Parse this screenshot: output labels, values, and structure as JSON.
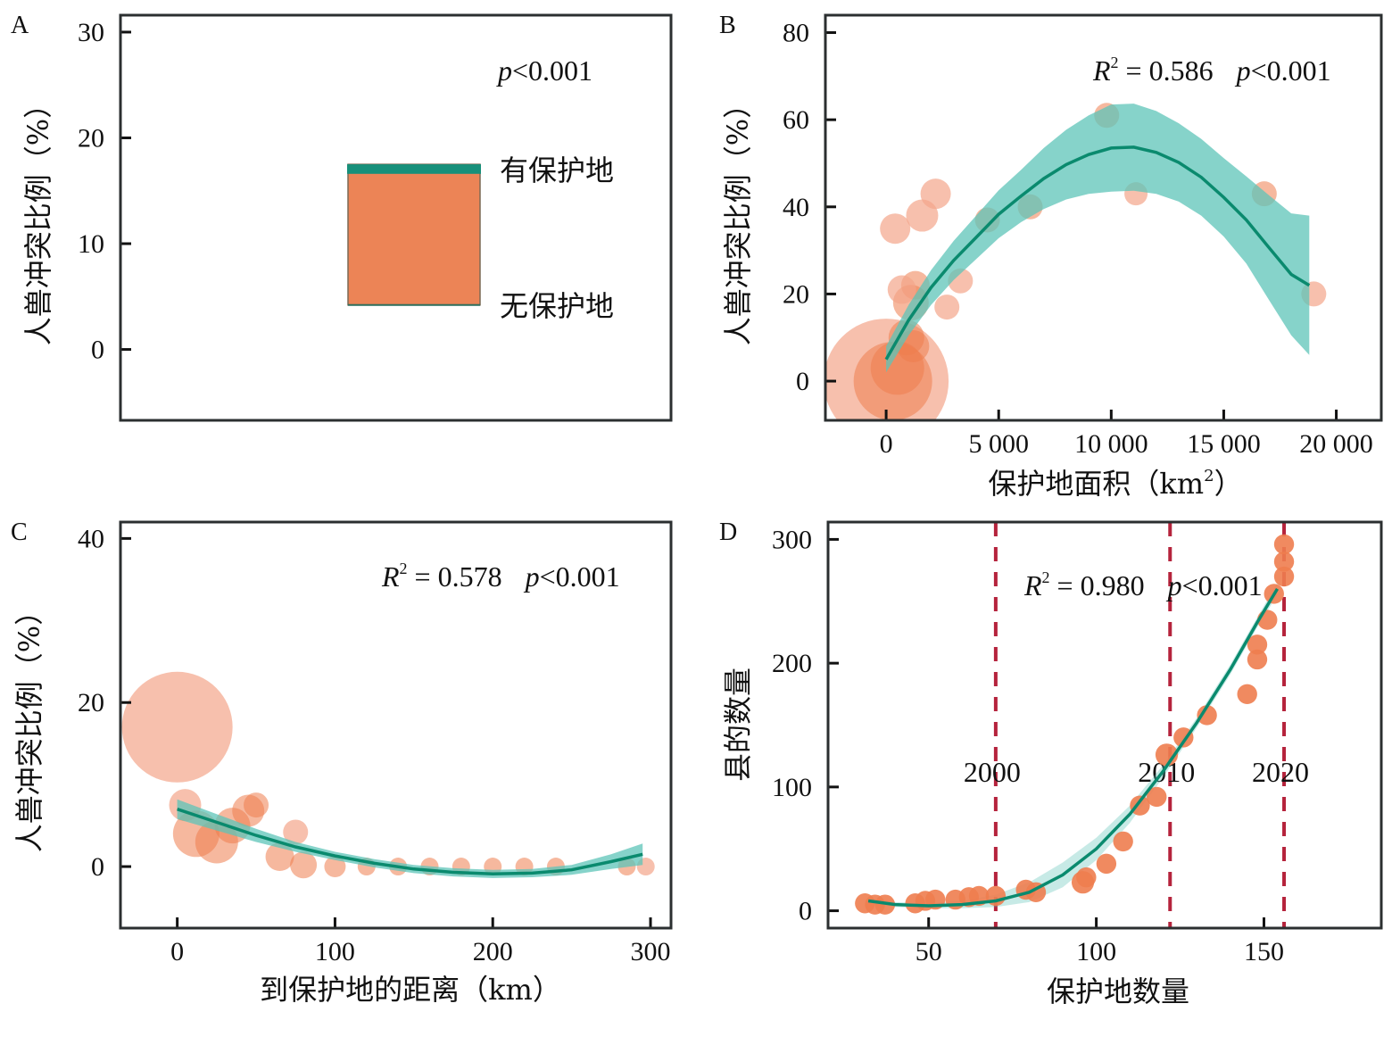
{
  "colors": {
    "point": "#ee7d4f",
    "point_light": "#f4a58a",
    "fit_line": "#0a8a6e",
    "band": "#5ec4b8",
    "dash": "#b5233c",
    "bar": "#ec8456",
    "bar_cap": "#17907a"
  },
  "chart_data": [
    {
      "id": "A",
      "panel_label": "A",
      "type": "bar",
      "title": "",
      "xlabel": "",
      "ylabel": "人兽冲突比例（%）",
      "ylim": [
        -6.7,
        31.6
      ],
      "yticks": [
        0,
        10,
        20,
        30
      ],
      "ytick_labels": [
        "0",
        "10",
        "20",
        "30"
      ],
      "stat_text": {
        "p": "p",
        "rest": "<0.001"
      },
      "bar": {
        "bottom": 4.2,
        "top": 17.5,
        "cap_bottom": 16.6
      },
      "labels": {
        "top": "有保护地",
        "bottom": "无保护地"
      },
      "series": [
        {
          "name": "有保护地",
          "value": 17.5
        },
        {
          "name": "无保护地",
          "value": 4.2
        }
      ]
    },
    {
      "id": "B",
      "panel_label": "B",
      "type": "scatter",
      "xlabel": "保护地面积（km²）",
      "xlabel_main": "保护地面积（km",
      "xlabel_sup": "2",
      "xlabel_end": "）",
      "ylabel": "人兽冲突比例（%）",
      "xlim": [
        -2700,
        22000
      ],
      "ylim": [
        -9,
        84
      ],
      "xticks": [
        0,
        5000,
        10000,
        15000,
        20000
      ],
      "xtick_labels": [
        "0",
        "5 000",
        "10 000",
        "15 000",
        "20 000"
      ],
      "yticks": [
        0,
        20,
        40,
        60,
        80
      ],
      "ytick_labels": [
        "0",
        "20",
        "40",
        "60",
        "80"
      ],
      "stat_text": {
        "r": "R",
        "sup": "2",
        "r_val": " = 0.586",
        "p": "p",
        "p_val": "<0.001"
      },
      "fit": {
        "type": "quadratic",
        "x_range": [
          0,
          18800
        ],
        "points": [
          [
            0,
            5
          ],
          [
            1000,
            14
          ],
          [
            2000,
            21.5
          ],
          [
            3000,
            27.7
          ],
          [
            4000,
            33
          ],
          [
            5000,
            38.3
          ],
          [
            6000,
            42.5
          ],
          [
            7000,
            46.5
          ],
          [
            8000,
            49.7
          ],
          [
            9000,
            52
          ],
          [
            10000,
            53.5
          ],
          [
            11000,
            53.7
          ],
          [
            12000,
            52.5
          ],
          [
            13000,
            50.2
          ],
          [
            14000,
            46.8
          ],
          [
            15000,
            42.2
          ],
          [
            16000,
            37
          ],
          [
            17000,
            30.7
          ],
          [
            18000,
            24.5
          ],
          [
            18800,
            22
          ]
        ],
        "band_halfwidth": [
          3,
          3.5,
          4,
          4.5,
          5,
          5.5,
          6,
          7,
          8,
          9,
          10,
          10,
          9.5,
          9,
          8.8,
          9,
          10,
          12,
          14,
          16
        ]
      },
      "points": [
        {
          "x": 0,
          "y": 0,
          "size": 70,
          "light": true
        },
        {
          "x": 300,
          "y": 0,
          "size": 44,
          "light": false
        },
        {
          "x": 500,
          "y": 3,
          "size": 30,
          "light": false
        },
        {
          "x": 900,
          "y": 10,
          "size": 20,
          "light": false
        },
        {
          "x": 1200,
          "y": 8,
          "size": 18,
          "light": false
        },
        {
          "x": 1100,
          "y": 18,
          "size": 20,
          "light": false
        },
        {
          "x": 1300,
          "y": 22,
          "size": 16,
          "light": false
        },
        {
          "x": 700,
          "y": 21,
          "size": 16,
          "light": true
        },
        {
          "x": 400,
          "y": 35,
          "size": 17,
          "light": true
        },
        {
          "x": 1600,
          "y": 38,
          "size": 18,
          "light": true
        },
        {
          "x": 2200,
          "y": 43,
          "size": 17,
          "light": true
        },
        {
          "x": 3300,
          "y": 23,
          "size": 14,
          "light": true
        },
        {
          "x": 2700,
          "y": 17,
          "size": 14,
          "light": true
        },
        {
          "x": 4500,
          "y": 37,
          "size": 14,
          "light": false
        },
        {
          "x": 6400,
          "y": 40,
          "size": 14,
          "light": false
        },
        {
          "x": 9800,
          "y": 61,
          "size": 14,
          "light": false
        },
        {
          "x": 11100,
          "y": 43,
          "size": 13,
          "light": true
        },
        {
          "x": 16800,
          "y": 43,
          "size": 14,
          "light": false
        },
        {
          "x": 19000,
          "y": 20,
          "size": 14,
          "light": true
        }
      ]
    },
    {
      "id": "C",
      "panel_label": "C",
      "type": "scatter",
      "xlabel": "到保护地的距离（km）",
      "ylabel": "人兽冲突比例（%）",
      "xlim": [
        -36,
        313
      ],
      "ylim": [
        -7.5,
        42
      ],
      "xticks": [
        0,
        100,
        200,
        300
      ],
      "xtick_labels": [
        "0",
        "100",
        "200",
        "300"
      ],
      "yticks": [
        0,
        20,
        40
      ],
      "ytick_labels": [
        "0",
        "20",
        "40"
      ],
      "stat_text": {
        "r": "R",
        "sup": "2",
        "r_val": " = 0.578",
        "p": "p",
        "p_val": "<0.001"
      },
      "fit": {
        "type": "quadratic",
        "x_range": [
          0,
          295
        ],
        "points": [
          [
            0,
            7
          ],
          [
            25,
            5.4
          ],
          [
            50,
            3.8
          ],
          [
            75,
            2.4
          ],
          [
            100,
            1.3
          ],
          [
            125,
            0.4
          ],
          [
            150,
            -0.3
          ],
          [
            175,
            -0.7
          ],
          [
            200,
            -0.9
          ],
          [
            225,
            -0.8
          ],
          [
            250,
            -0.4
          ],
          [
            275,
            0.6
          ],
          [
            295,
            1.5
          ]
        ],
        "band_halfwidth": [
          1.2,
          1,
          0.8,
          0.6,
          0.5,
          0.5,
          0.5,
          0.5,
          0.5,
          0.5,
          0.6,
          0.9,
          1.3
        ]
      },
      "points": [
        {
          "x": 0,
          "y": 17,
          "size": 62,
          "light": true
        },
        {
          "x": 5,
          "y": 7.5,
          "size": 18,
          "light": true
        },
        {
          "x": 12,
          "y": 4,
          "size": 26,
          "light": false
        },
        {
          "x": 25,
          "y": 3,
          "size": 24,
          "light": false
        },
        {
          "x": 35,
          "y": 5,
          "size": 20,
          "light": false
        },
        {
          "x": 45,
          "y": 6.8,
          "size": 18,
          "light": false
        },
        {
          "x": 50,
          "y": 7.5,
          "size": 14,
          "light": false
        },
        {
          "x": 75,
          "y": 4.2,
          "size": 14,
          "light": true
        },
        {
          "x": 65,
          "y": 1.2,
          "size": 16,
          "light": false
        },
        {
          "x": 80,
          "y": 0.2,
          "size": 15,
          "light": false
        },
        {
          "x": 100,
          "y": 0,
          "size": 12,
          "light": false
        },
        {
          "x": 120,
          "y": 0,
          "size": 10,
          "light": false
        },
        {
          "x": 140,
          "y": 0,
          "size": 10,
          "light": false
        },
        {
          "x": 160,
          "y": 0,
          "size": 10,
          "light": false
        },
        {
          "x": 180,
          "y": 0,
          "size": 10,
          "light": false
        },
        {
          "x": 200,
          "y": 0,
          "size": 10,
          "light": false
        },
        {
          "x": 220,
          "y": 0,
          "size": 10,
          "light": false
        },
        {
          "x": 240,
          "y": 0,
          "size": 10,
          "light": false
        },
        {
          "x": 285,
          "y": 0,
          "size": 10,
          "light": false
        },
        {
          "x": 297,
          "y": 0,
          "size": 10,
          "light": true
        }
      ]
    },
    {
      "id": "D",
      "panel_label": "D",
      "type": "scatter",
      "xlabel": "保护地数量",
      "ylabel": "县的数量",
      "xlim": [
        20,
        185
      ],
      "ylim": [
        -14,
        314
      ],
      "xticks": [
        50,
        100,
        150
      ],
      "xtick_labels": [
        "50",
        "100",
        "150"
      ],
      "yticks": [
        0,
        100,
        200,
        300
      ],
      "ytick_labels": [
        "0",
        "100",
        "200",
        "300"
      ],
      "stat_text": {
        "r": "R",
        "sup": "2",
        "r_val": " = 0.980",
        "p": "p",
        "p_val": "<0.001"
      },
      "vlines": [
        {
          "x": 70,
          "label": "2000"
        },
        {
          "x": 122,
          "label": "2010"
        },
        {
          "x": 156,
          "label": "2020"
        }
      ],
      "fit": {
        "type": "cubic",
        "x_range": [
          32,
          154
        ],
        "points": [
          [
            32,
            8
          ],
          [
            40,
            5
          ],
          [
            50,
            4
          ],
          [
            60,
            5
          ],
          [
            70,
            8
          ],
          [
            80,
            15
          ],
          [
            90,
            29
          ],
          [
            100,
            50
          ],
          [
            110,
            78
          ],
          [
            120,
            113
          ],
          [
            130,
            152
          ],
          [
            140,
            195
          ],
          [
            148,
            233
          ],
          [
            154,
            260
          ]
        ],
        "band_halfwidth": [
          2,
          2,
          2,
          3,
          5,
          8,
          10,
          9,
          7,
          5,
          4,
          4,
          4,
          5
        ]
      },
      "points": [
        {
          "x": 31,
          "y": 6,
          "size": 8
        },
        {
          "x": 34,
          "y": 5,
          "size": 8
        },
        {
          "x": 37,
          "y": 5,
          "size": 8
        },
        {
          "x": 46,
          "y": 6,
          "size": 8
        },
        {
          "x": 49,
          "y": 8,
          "size": 8
        },
        {
          "x": 52,
          "y": 9,
          "size": 8
        },
        {
          "x": 58,
          "y": 9,
          "size": 8
        },
        {
          "x": 62,
          "y": 11,
          "size": 8
        },
        {
          "x": 65,
          "y": 12,
          "size": 8
        },
        {
          "x": 70,
          "y": 12,
          "size": 8
        },
        {
          "x": 79,
          "y": 17,
          "size": 8
        },
        {
          "x": 82,
          "y": 15,
          "size": 8
        },
        {
          "x": 96,
          "y": 23,
          "size": 9
        },
        {
          "x": 97,
          "y": 27,
          "size": 8
        },
        {
          "x": 103,
          "y": 38,
          "size": 8
        },
        {
          "x": 108,
          "y": 56,
          "size": 8
        },
        {
          "x": 113,
          "y": 85,
          "size": 8
        },
        {
          "x": 118,
          "y": 92,
          "size": 8
        },
        {
          "x": 121,
          "y": 126,
          "size": 9
        },
        {
          "x": 126,
          "y": 140,
          "size": 8
        },
        {
          "x": 133,
          "y": 158,
          "size": 8
        },
        {
          "x": 145,
          "y": 175,
          "size": 8
        },
        {
          "x": 148,
          "y": 203,
          "size": 8
        },
        {
          "x": 148,
          "y": 215,
          "size": 8
        },
        {
          "x": 151,
          "y": 235,
          "size": 8
        },
        {
          "x": 153,
          "y": 256,
          "size": 8
        },
        {
          "x": 156,
          "y": 270,
          "size": 8
        },
        {
          "x": 156,
          "y": 282,
          "size": 8
        },
        {
          "x": 156,
          "y": 296,
          "size": 8
        }
      ]
    }
  ]
}
